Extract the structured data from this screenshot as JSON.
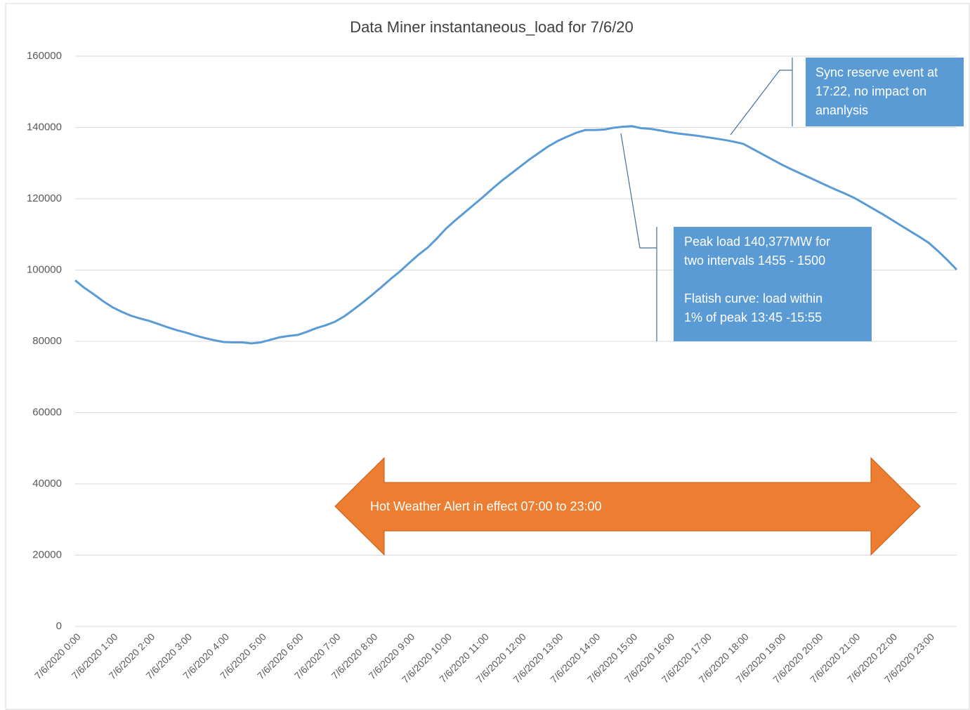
{
  "chart_data": {
    "type": "line",
    "title": "Data Miner instantaneous_load for 7/6/20",
    "categories": [
      "7/6/2020 0:00",
      null,
      null,
      null,
      "7/6/2020 1:00",
      null,
      null,
      null,
      "7/6/2020 2:00",
      null,
      null,
      null,
      "7/6/2020 3:00",
      null,
      null,
      null,
      "7/6/2020 4:00",
      null,
      null,
      null,
      "7/6/2020 5:00",
      null,
      null,
      null,
      "7/6/2020 6:00",
      null,
      null,
      null,
      "7/6/2020 7:00",
      null,
      null,
      null,
      "7/6/2020 8:00",
      null,
      null,
      null,
      "7/6/2020 9:00",
      null,
      null,
      null,
      "7/6/2020 10:00",
      null,
      null,
      null,
      "7/6/2020 11:00",
      null,
      null,
      null,
      "7/6/2020 12:00",
      null,
      null,
      null,
      "7/6/2020 13:00",
      null,
      null,
      null,
      "7/6/2020 14:00",
      null,
      null,
      null,
      "7/6/2020 15:00",
      null,
      null,
      null,
      "7/6/2020 16:00",
      null,
      null,
      null,
      "7/6/2020 17:00",
      null,
      null,
      null,
      "7/6/2020 18:00",
      null,
      null,
      null,
      "7/6/2020 19:00",
      null,
      null,
      null,
      "7/6/2020 20:00",
      null,
      null,
      null,
      "7/6/2020 21:00",
      null,
      null,
      null,
      "7/6/2020 22:00",
      null,
      null,
      null,
      "7/6/2020 23:00",
      null,
      null,
      null
    ],
    "values": [
      97100,
      95000,
      93200,
      91300,
      89600,
      88300,
      87200,
      86400,
      85700,
      84800,
      83900,
      83100,
      82400,
      81600,
      80900,
      80300,
      79800,
      79700,
      79700,
      79400,
      79700,
      80400,
      81100,
      81500,
      81800,
      82700,
      83700,
      84500,
      85500,
      87000,
      88900,
      90900,
      93000,
      95200,
      97500,
      99600,
      102000,
      104300,
      106300,
      108900,
      111700,
      114000,
      116200,
      118400,
      120600,
      122900,
      125100,
      127100,
      129100,
      131100,
      132900,
      134700,
      136200,
      137400,
      138500,
      139300,
      139300,
      139400,
      139900,
      140200,
      140377,
      139800,
      139600,
      139200,
      138700,
      138300,
      138000,
      137700,
      137300,
      136900,
      136500,
      136000,
      135400,
      134000,
      132600,
      131200,
      129800,
      128500,
      127300,
      126100,
      124900,
      123700,
      122500,
      121400,
      120200,
      118700,
      117200,
      115700,
      114100,
      112500,
      110900,
      109300,
      107600,
      105300,
      102800,
      100100
    ],
    "color": "#5b9bd5",
    "ylim": [
      0,
      160000
    ],
    "yticks": [
      0,
      20000,
      40000,
      60000,
      80000,
      100000,
      120000,
      140000,
      160000
    ],
    "grid": true,
    "annotations": [
      {
        "lines": [
          "Sync reserve event at",
          "17:22, no impact on",
          "ananlysis"
        ],
        "color": "#5b9bd5"
      },
      {
        "lines": [
          "Peak load 140,377MW for",
          "two intervals 1455 - 1500",
          "Flatish curve: load within",
          "1% of peak 13:45 -15:55"
        ],
        "color": "#5b9bd5"
      },
      {
        "lines": [
          "Hot Weather Alert in effect 07:00 to 23:00"
        ],
        "color": "#ed7d31"
      }
    ]
  }
}
